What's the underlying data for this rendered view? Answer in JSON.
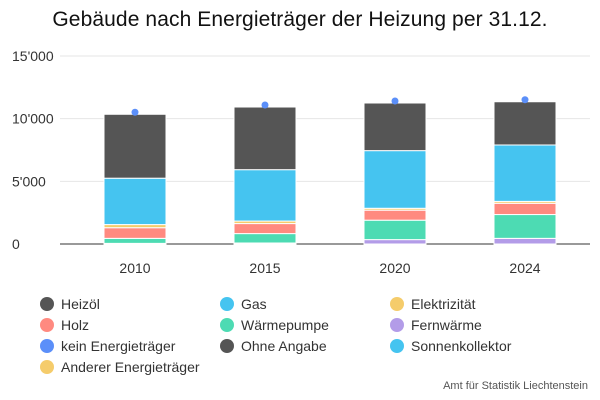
{
  "chart_data": {
    "type": "bar",
    "stacked": true,
    "title": "Gebäude nach Energieträger der Heizung per 31.12.",
    "source": "Amt für Statistik Liechtenstein",
    "categories": [
      "2010",
      "2015",
      "2020",
      "2024"
    ],
    "ylim": [
      0,
      15000
    ],
    "yticks": [
      0,
      5000,
      10000,
      15000
    ],
    "ytick_labels": [
      "0",
      "5'000",
      "10'000",
      "15'000"
    ],
    "grid": true,
    "legend_position": "bottom",
    "legend": [
      {
        "name": "Heizöl",
        "color": "#555555"
      },
      {
        "name": "Gas",
        "color": "#45c4f0"
      },
      {
        "name": "Elektrizität",
        "color": "#f5cc6b"
      },
      {
        "name": "Holz",
        "color": "#ff8a80"
      },
      {
        "name": "Wärmepumpe",
        "color": "#4ddbb3"
      },
      {
        "name": "Fernwärme",
        "color": "#b39ce8"
      },
      {
        "name": "kein Energieträger",
        "color": "#5b8ff9"
      },
      {
        "name": "Ohne Angabe",
        "color": "#555555"
      },
      {
        "name": "Sonnenkollektor",
        "color": "#45c4f0"
      },
      {
        "name": "Anderer Energieträger",
        "color": "#f5cc6b"
      }
    ],
    "series": [
      {
        "name": "Fernwärme",
        "color": "#b39ce8",
        "values": [
          50,
          80,
          350,
          450
        ]
      },
      {
        "name": "Wärmepumpe",
        "color": "#4ddbb3",
        "values": [
          400,
          750,
          1550,
          1900
        ]
      },
      {
        "name": "Holz",
        "color": "#ff8a80",
        "values": [
          850,
          800,
          800,
          900
        ]
      },
      {
        "name": "Elektrizität",
        "color": "#f5cc6b",
        "values": [
          250,
          200,
          150,
          150
        ]
      },
      {
        "name": "Gas",
        "color": "#45c4f0",
        "values": [
          3700,
          4100,
          4600,
          4500
        ]
      },
      {
        "name": "Heizöl",
        "color": "#555555",
        "values": [
          5100,
          5000,
          3800,
          3450
        ]
      },
      {
        "name": "kein Energieträger",
        "color": "#5b8ff9",
        "values": [
          50,
          50,
          50,
          50
        ]
      }
    ]
  }
}
